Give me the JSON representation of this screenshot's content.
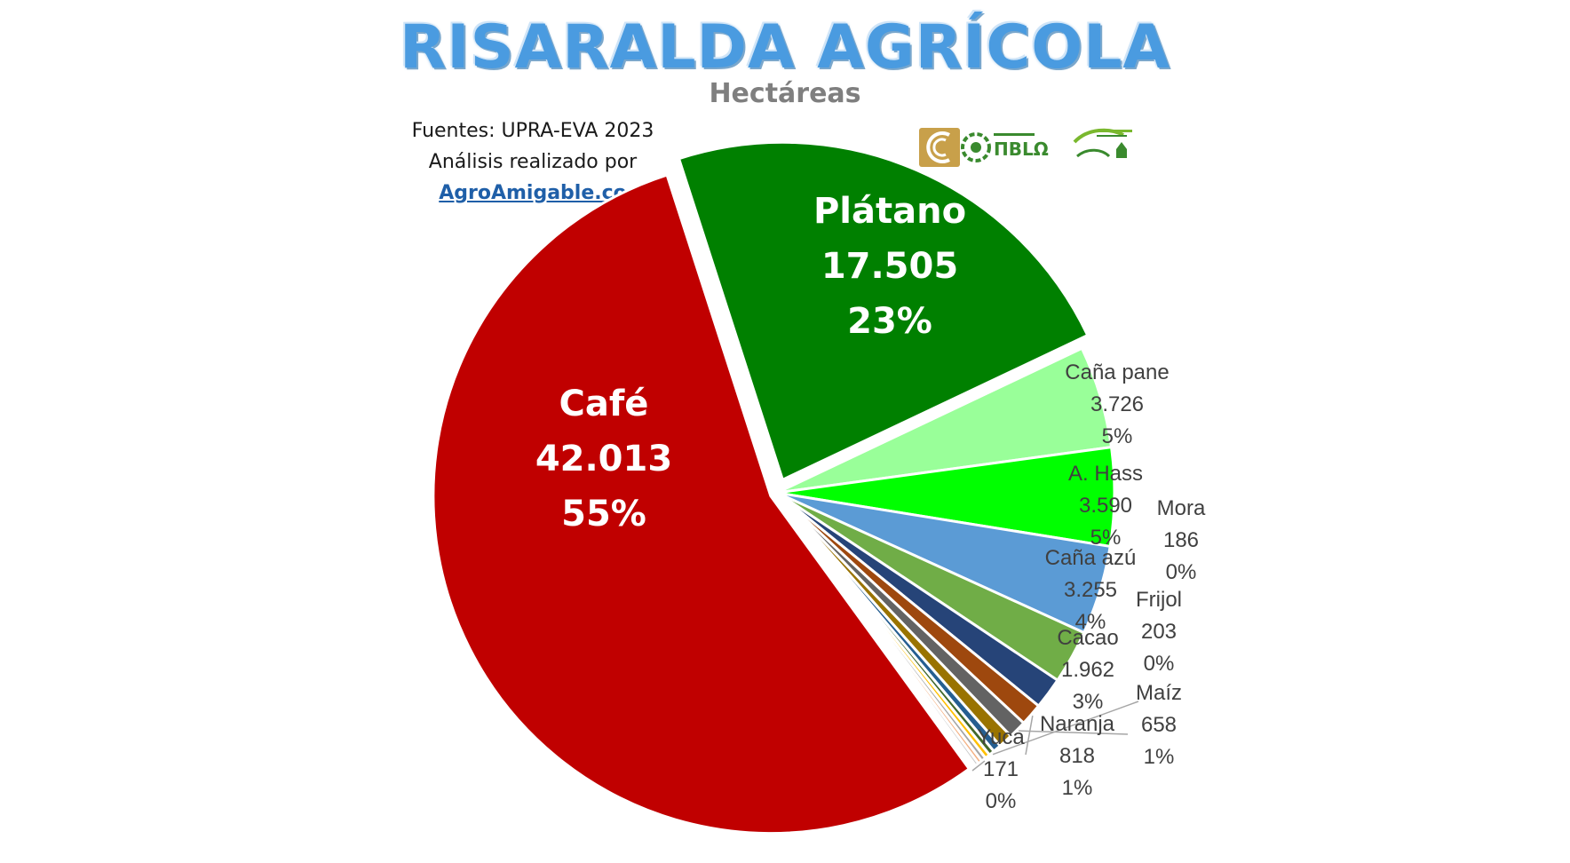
{
  "header": {
    "title": "RISARALDA AGRÍCOLA",
    "subtitle": "Hectáreas",
    "source_line1": "Fuentes: UPRA-EVA 2023",
    "source_line2": "Análisis realizado por",
    "source_link": "AgroAmigable.co"
  },
  "chart_data": {
    "type": "pie",
    "title": "RISARALDA AGRÍCOLA",
    "subtitle": "Hectáreas",
    "slices": [
      {
        "name": "Café",
        "value": 42013,
        "label_value": "42.013",
        "pct": "55%",
        "color": "#c00000"
      },
      {
        "name": "Plátano",
        "value": 17505,
        "label_value": "17.505",
        "pct": "23%",
        "color": "#008000"
      },
      {
        "name": "Caña pane",
        "value": 3726,
        "label_value": "3.726",
        "pct": "5%",
        "color": "#99ff99"
      },
      {
        "name": "A. Hass",
        "value": 3590,
        "label_value": "3.590",
        "pct": "5%",
        "color": "#00ff00"
      },
      {
        "name": "Caña azú",
        "value": 3255,
        "label_value": "3.255",
        "pct": "4%",
        "color": "#5b9bd5"
      },
      {
        "name": "Cacao",
        "value": 1962,
        "label_value": "1.962",
        "pct": "3%",
        "color": "#70ad47"
      },
      {
        "name": "",
        "value": 1150,
        "label_value": "",
        "pct": "",
        "color": "#264478"
      },
      {
        "name": "Naranja",
        "value": 818,
        "label_value": "818",
        "pct": "1%",
        "color": "#9e480e"
      },
      {
        "name": "Maíz",
        "value": 658,
        "label_value": "658",
        "pct": "1%",
        "color": "#636363"
      },
      {
        "name": "",
        "value": 520,
        "label_value": "",
        "pct": "",
        "color": "#997300"
      },
      {
        "name": "",
        "value": 300,
        "label_value": "",
        "pct": "",
        "color": "#255e91"
      },
      {
        "name": "Frijol",
        "value": 203,
        "label_value": "203",
        "pct": "0%",
        "color": "#43682b"
      },
      {
        "name": "Mora",
        "value": 186,
        "label_value": "186",
        "pct": "0%",
        "color": "#ffc000"
      },
      {
        "name": "Yuca",
        "value": 171,
        "label_value": "171",
        "pct": "0%",
        "color": "#a5a5a5"
      },
      {
        "name": "",
        "value": 150,
        "label_value": "",
        "pct": "",
        "color": "#f4b183"
      },
      {
        "name": "",
        "value": 130,
        "label_value": "",
        "pct": "",
        "color": "#c9c9c9"
      }
    ]
  },
  "logos": {
    "logo1": "logo-gold-circle-icon",
    "logo2": "logo-green-circle-icon",
    "logo3": "logo-green-leaf-icon"
  }
}
